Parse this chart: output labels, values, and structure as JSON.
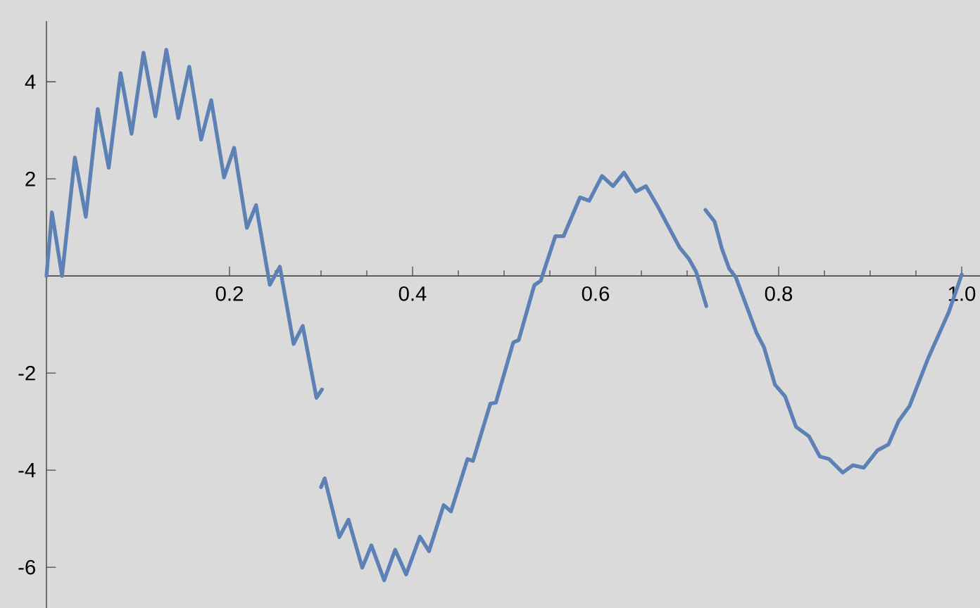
{
  "chart_data": {
    "type": "line",
    "xlim": [
      0,
      1.02
    ],
    "ylim": [
      -6.84,
      5.25
    ],
    "xticks": [
      0.2,
      0.4,
      0.6,
      0.8,
      {
        "value": 1,
        "label": "1.0"
      }
    ],
    "yticks": [
      -6,
      -4,
      -2,
      2,
      4
    ],
    "series": [
      {
        "color": "#5e81b5",
        "x": [
          0,
          0.006,
          0.017,
          0.031,
          0.043,
          0.056,
          0.068,
          0.081,
          0.093,
          0.106,
          0.119,
          0.131,
          0.144,
          0.156,
          0.169,
          0.18,
          0.194,
          0.205,
          0.219,
          0.229,
          0.244,
          0.255,
          0.27,
          0.28,
          0.295,
          0.301
        ],
        "values": [
          0,
          1.31,
          0,
          2.44,
          1.22,
          3.44,
          2.23,
          4.18,
          2.93,
          4.6,
          3.29,
          4.66,
          3.25,
          4.31,
          2.81,
          3.62,
          2.03,
          2.64,
          0.99,
          1.46,
          -0.18,
          0.19,
          -1.4,
          -1.03,
          -2.51,
          -2.34
        ]
      },
      {
        "color": "#5e81b5",
        "x": [
          0.3,
          0.304,
          0.32,
          0.33,
          0.345,
          0.355,
          0.369,
          0.381,
          0.393,
          0.408,
          0.418,
          0.434,
          0.442,
          0.46,
          0.466,
          0.485,
          0.491,
          0.51,
          0.516,
          0.533,
          0.54,
          0.556,
          0.565,
          0.583,
          0.593,
          0.607,
          0.619,
          0.631,
          0.644,
          0.655,
          0.668,
          0.679,
          0.692,
          0.702,
          0.71,
          0.721
        ],
        "values": [
          -4.35,
          -4.17,
          -5.38,
          -5.02,
          -6.01,
          -5.55,
          -6.27,
          -5.64,
          -6.15,
          -5.37,
          -5.67,
          -4.72,
          -4.85,
          -3.77,
          -3.81,
          -2.63,
          -2.61,
          -1.37,
          -1.32,
          -0.19,
          -0.1,
          0.82,
          0.82,
          1.62,
          1.55,
          2.06,
          1.85,
          2.13,
          1.74,
          1.85,
          1.43,
          1.04,
          0.58,
          0.35,
          0.08,
          -0.62
        ]
      },
      {
        "color": "#5e81b5",
        "x": [
          0.72,
          0.73,
          0.738,
          0.746,
          0.753,
          0.776,
          0.784,
          0.796,
          0.807,
          0.819,
          0.833,
          0.845,
          0.855,
          0.87,
          0.881,
          0.893,
          0.908,
          0.92,
          0.931,
          0.943,
          0.963,
          0.986,
          1.0
        ],
        "values": [
          1.36,
          1.12,
          0.56,
          0.15,
          -0.02,
          -1.18,
          -1.47,
          -2.24,
          -2.48,
          -3.11,
          -3.3,
          -3.72,
          -3.77,
          -4.05,
          -3.9,
          -3.95,
          -3.59,
          -3.47,
          -2.99,
          -2.68,
          -1.71,
          -0.74,
          0.03
        ]
      }
    ]
  }
}
